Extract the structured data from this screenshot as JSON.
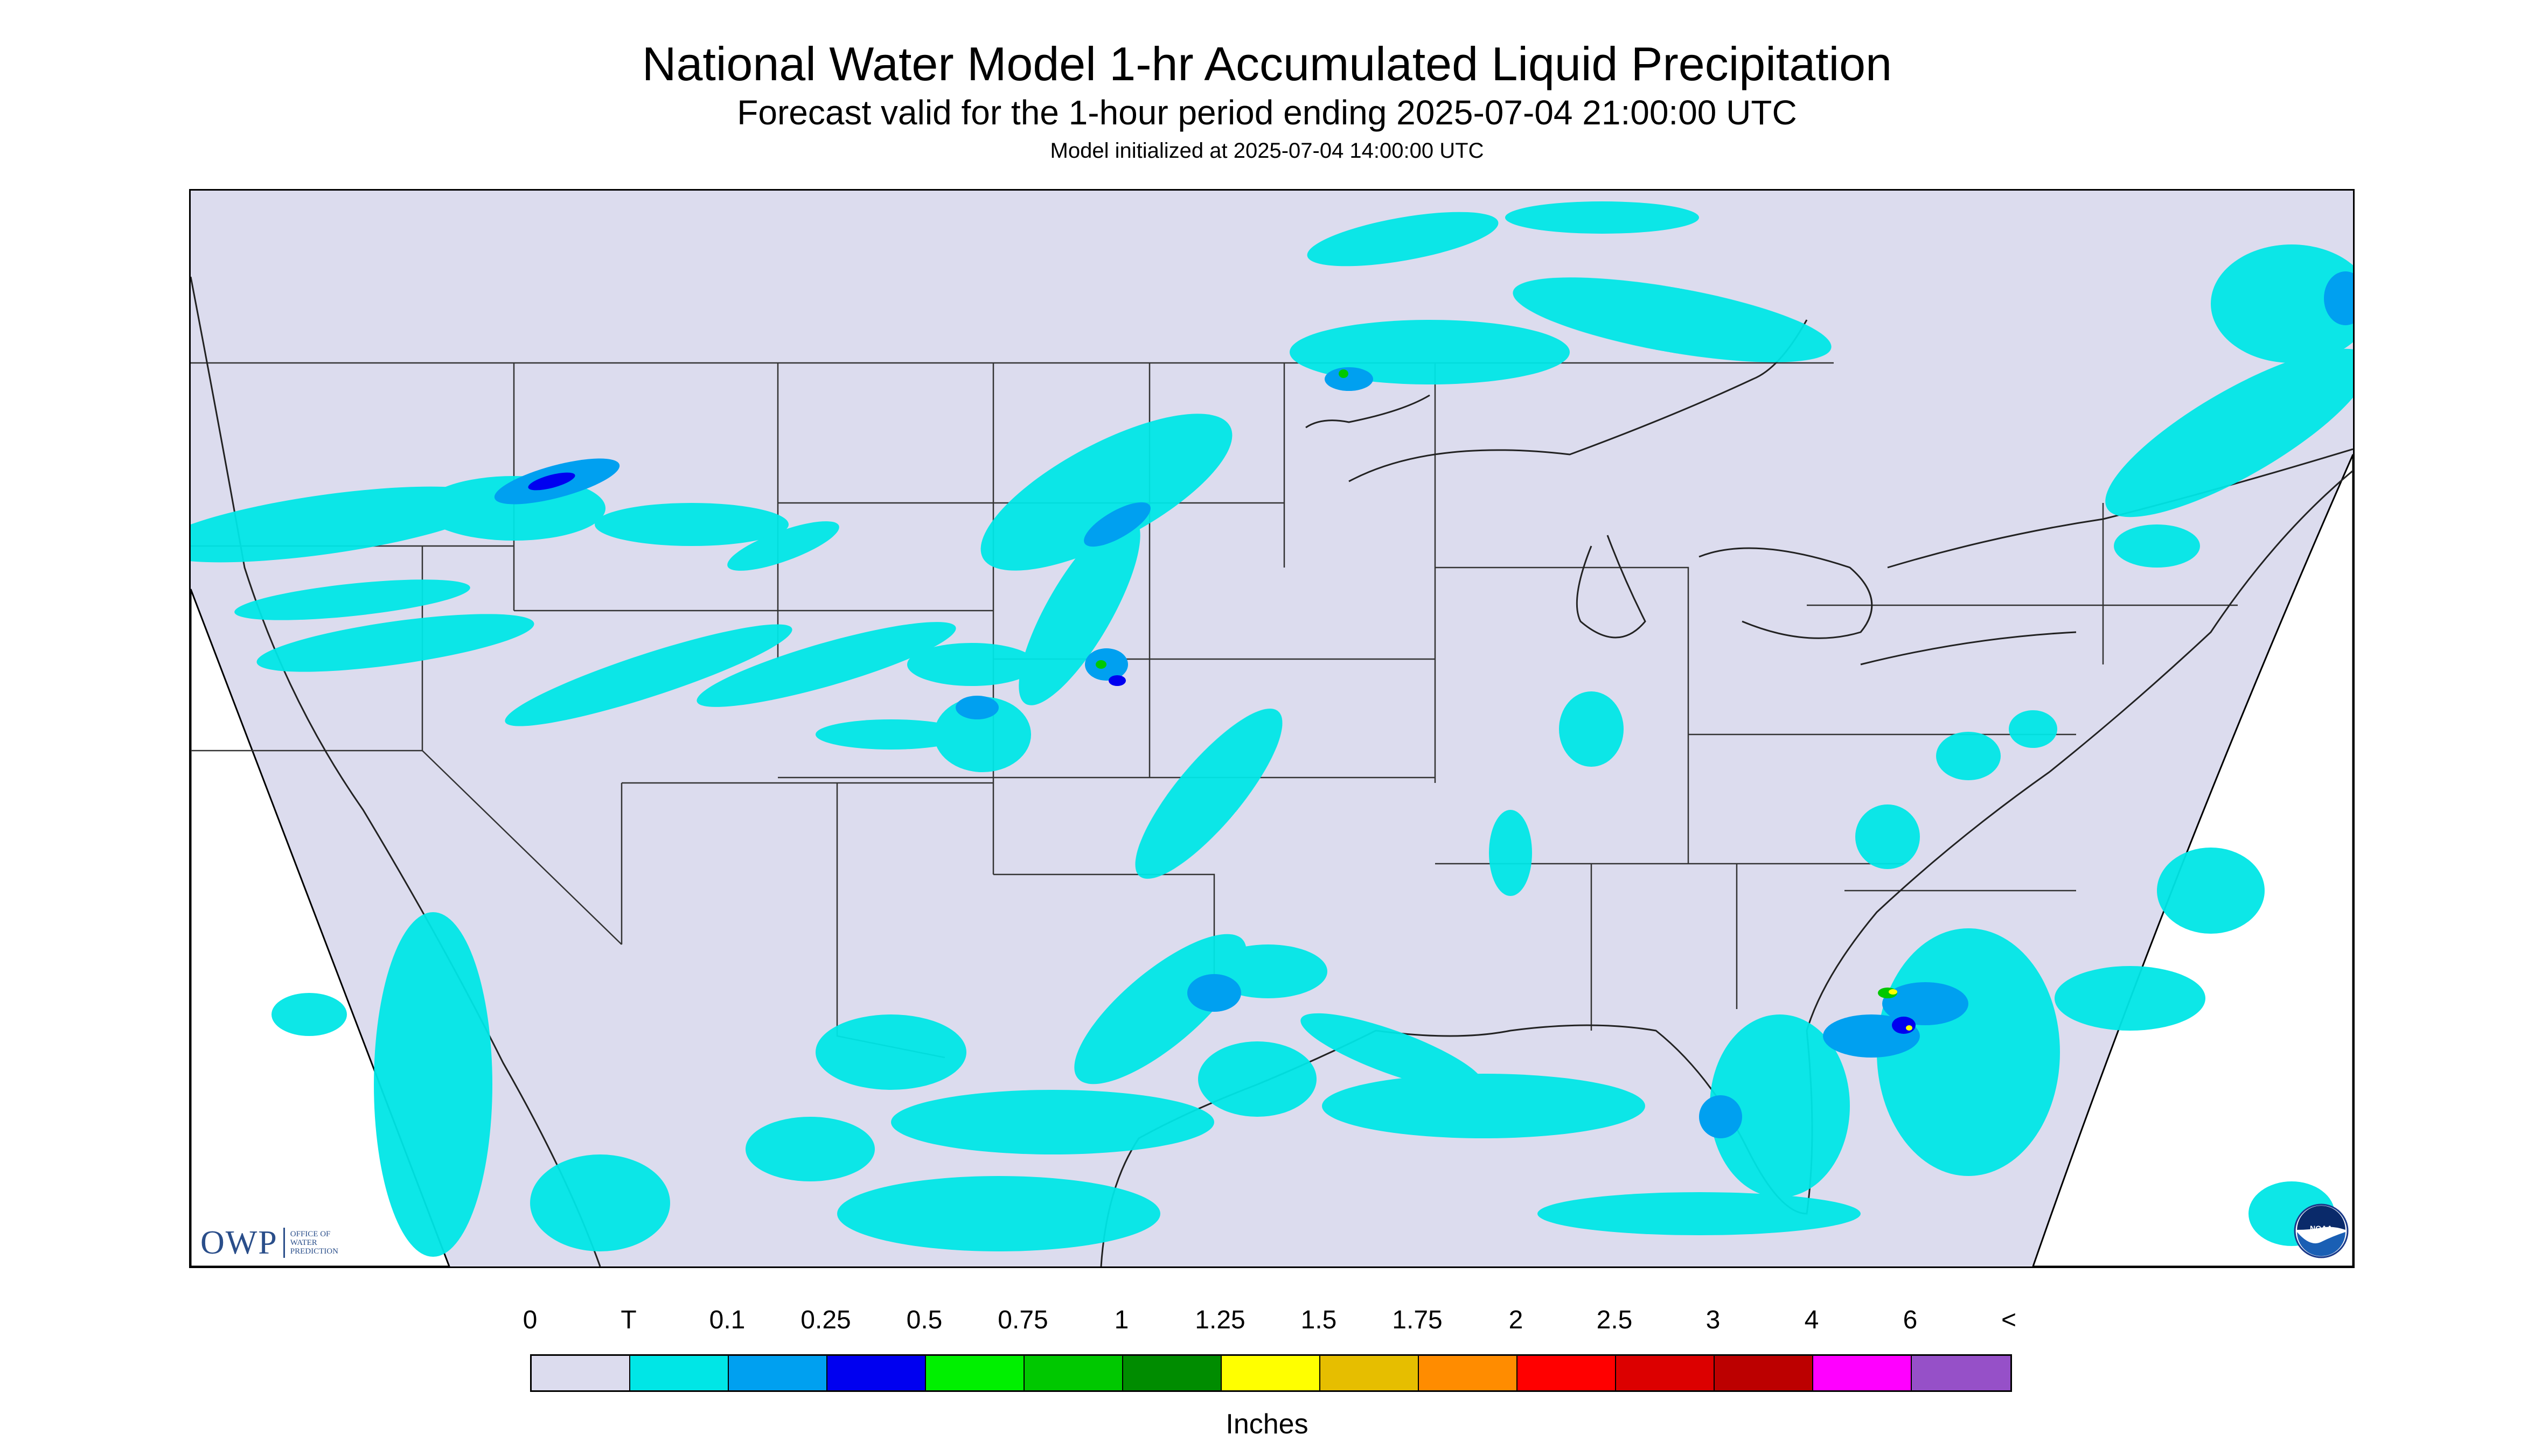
{
  "title": "National Water Model 1-hr Accumulated Liquid Precipitation",
  "subtitle": "Forecast valid for the 1-hour period ending 2025-07-04 21:00:00 UTC",
  "init_line": "Model initialized at 2025-07-04 14:00:00 UTC",
  "logos": {
    "owp_letters": "OWP",
    "owp_text_lines": [
      "OFFICE OF",
      "WATER",
      "PREDICTION"
    ],
    "noaa_text": "NOAA"
  },
  "colors": {
    "background": "#dcdcee",
    "outside_domain": "#ffffff",
    "boundary": "#333333"
  },
  "legend": {
    "labels": [
      "0",
      "T",
      "0.1",
      "0.25",
      "0.5",
      "0.75",
      "1",
      "1.25",
      "1.5",
      "1.75",
      "2",
      "2.5",
      "3",
      "4",
      "6",
      "<"
    ],
    "colors": [
      "#dcdcee",
      "#00e6e6",
      "#00a0f0",
      "#0000f0",
      "#00f000",
      "#00c800",
      "#008c00",
      "#ffff00",
      "#e6be00",
      "#ff8c00",
      "#ff0000",
      "#dc0000",
      "#bc0000",
      "#ff00ff",
      "#9650c8"
    ],
    "units": "Inches"
  }
}
